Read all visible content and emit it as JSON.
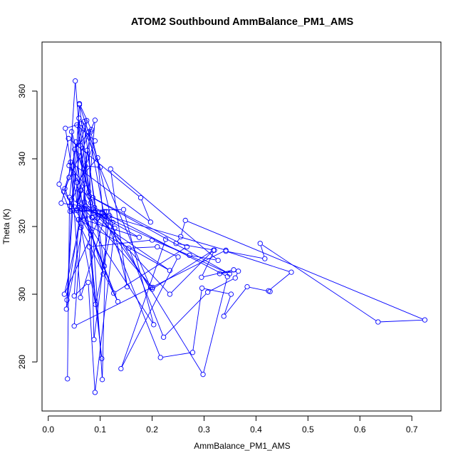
{
  "chart_data": {
    "type": "line",
    "title": "ATOM2 Southbound AmmBalance_PM1_AMS",
    "xlabel": "AmmBalance_PM1_AMS",
    "ylabel": "Theta (K)",
    "xlim": [
      -0.012,
      0.756
    ],
    "ylim": [
      265.5,
      374.5
    ],
    "x_ticks": [
      0.0,
      0.1,
      0.2,
      0.3,
      0.4,
      0.5,
      0.6,
      0.7
    ],
    "x_tick_labels": [
      "0.0",
      "0.1",
      "0.2",
      "0.3",
      "0.4",
      "0.5",
      "0.6",
      "0.7"
    ],
    "y_ticks": [
      280,
      300,
      320,
      340,
      360
    ],
    "y_tick_labels": [
      "280",
      "300",
      "320",
      "340",
      "360"
    ],
    "grid": false,
    "marker": "open-circle",
    "series_color": "#0000ff",
    "points": [
      [
        0.037,
        275.0
      ],
      [
        0.041,
        328.6
      ],
      [
        0.053,
        345.0
      ],
      [
        0.066,
        325.0
      ],
      [
        0.11,
        323.0
      ],
      [
        0.298,
        276.3
      ],
      [
        0.345,
        305.2
      ],
      [
        0.089,
        325.6
      ],
      [
        0.025,
        326.9
      ],
      [
        0.04,
        334.5
      ],
      [
        0.052,
        363.0
      ],
      [
        0.072,
        326.0
      ],
      [
        0.128,
        319.5
      ],
      [
        0.09,
        271.0
      ],
      [
        0.077,
        303.5
      ],
      [
        0.05,
        299.5
      ],
      [
        0.062,
        330.6
      ],
      [
        0.086,
        328.5
      ],
      [
        0.267,
        314.0
      ],
      [
        0.126,
        300.3
      ],
      [
        0.063,
        325.2
      ],
      [
        0.036,
        298.3
      ],
      [
        0.06,
        356.3
      ],
      [
        0.083,
        348.6
      ],
      [
        0.051,
        342.8
      ],
      [
        0.035,
        295.6
      ],
      [
        0.069,
        322.0
      ],
      [
        0.175,
        316.8
      ],
      [
        0.045,
        328.0
      ],
      [
        0.06,
        340.8
      ],
      [
        0.079,
        329.0
      ],
      [
        0.349,
        306.0
      ],
      [
        0.09,
        324.1
      ],
      [
        0.045,
        348.0
      ],
      [
        0.058,
        325.6
      ],
      [
        0.342,
        313.0
      ],
      [
        0.05,
        290.6
      ],
      [
        0.075,
        342.5
      ],
      [
        0.108,
        308.3
      ],
      [
        0.082,
        317.6
      ],
      [
        0.03,
        330.3
      ],
      [
        0.069,
        351.0
      ],
      [
        0.106,
        306.0
      ],
      [
        0.055,
        333.0
      ],
      [
        0.095,
        340.3
      ],
      [
        0.105,
        324.0
      ],
      [
        0.124,
        321.2
      ],
      [
        0.091,
        297.0
      ],
      [
        0.063,
        319.7
      ],
      [
        0.033,
        349.0
      ],
      [
        0.064,
        350.4
      ],
      [
        0.197,
        302.0
      ],
      [
        0.082,
        327.0
      ],
      [
        0.04,
        338.0
      ],
      [
        0.07,
        332.6
      ],
      [
        0.058,
        327.5
      ],
      [
        0.134,
        297.8
      ],
      [
        0.042,
        326.0
      ],
      [
        0.09,
        345.3
      ],
      [
        0.055,
        350.0
      ],
      [
        0.085,
        322.6
      ],
      [
        0.06,
        356.0
      ],
      [
        0.1,
        337.5
      ],
      [
        0.071,
        337.9
      ],
      [
        0.069,
        322.5
      ],
      [
        0.203,
        291.0
      ],
      [
        0.145,
        325.0
      ],
      [
        0.047,
        324.7
      ],
      [
        0.032,
        331.2
      ],
      [
        0.09,
        351.4
      ],
      [
        0.078,
        330.3
      ],
      [
        0.059,
        352.0
      ],
      [
        0.056,
        325.1
      ],
      [
        0.074,
        351.3
      ],
      [
        0.061,
        344.0
      ],
      [
        0.103,
        281.0
      ],
      [
        0.079,
        314.0
      ],
      [
        0.2,
        316.0
      ],
      [
        0.272,
        311.5
      ],
      [
        0.327,
        310.0
      ],
      [
        0.12,
        337.0
      ],
      [
        0.152,
        302.2
      ],
      [
        0.082,
        348.0
      ],
      [
        0.055,
        324.7
      ],
      [
        0.042,
        324.5
      ],
      [
        0.021,
        332.5
      ],
      [
        0.039,
        346.0
      ],
      [
        0.178,
        328.5
      ],
      [
        0.197,
        321.3
      ],
      [
        0.043,
        339.0
      ],
      [
        0.062,
        299.0
      ],
      [
        0.112,
        324.4
      ],
      [
        0.104,
        274.8
      ],
      [
        0.084,
        322.7
      ],
      [
        0.234,
        307.0
      ],
      [
        0.058,
        322.0
      ],
      [
        0.103,
        324.0
      ],
      [
        0.031,
        300.0
      ],
      [
        0.07,
        327.2
      ],
      [
        0.234,
        300.0
      ],
      [
        0.318,
        313.0
      ],
      [
        0.2,
        301.5
      ],
      [
        0.201,
        302.0
      ],
      [
        0.07,
        325.0
      ],
      [
        0.108,
        324.4
      ],
      [
        0.095,
        322.5
      ],
      [
        0.118,
        323.2
      ],
      [
        0.088,
        286.6
      ],
      [
        0.078,
        348.0
      ],
      [
        0.108,
        323.0
      ],
      [
        0.216,
        281.3
      ],
      [
        0.278,
        282.8
      ],
      [
        0.296,
        301.8
      ],
      [
        0.352,
        300.0
      ],
      [
        0.338,
        293.5
      ],
      [
        0.383,
        302.2
      ],
      [
        0.427,
        300.8
      ],
      [
        0.424,
        301.0
      ],
      [
        0.468,
        306.5
      ],
      [
        0.342,
        312.7
      ],
      [
        0.417,
        310.5
      ],
      [
        0.408,
        315.0
      ],
      [
        0.635,
        291.8
      ],
      [
        0.725,
        292.4
      ],
      [
        0.264,
        321.8
      ],
      [
        0.255,
        317.0
      ],
      [
        0.246,
        315.0
      ],
      [
        0.32,
        313.0
      ],
      [
        0.295,
        305.0
      ],
      [
        0.357,
        307.2
      ],
      [
        0.33,
        306.1
      ],
      [
        0.366,
        306.8
      ],
      [
        0.36,
        304.8
      ],
      [
        0.307,
        300.6
      ],
      [
        0.222,
        287.3
      ],
      [
        0.155,
        313.6
      ],
      [
        0.21,
        314.0
      ],
      [
        0.25,
        311.0
      ],
      [
        0.14,
        278.0
      ],
      [
        0.226,
        316.2
      ]
    ]
  }
}
